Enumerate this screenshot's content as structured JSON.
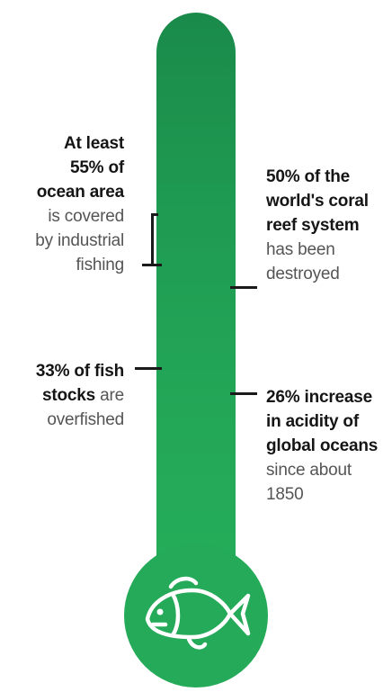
{
  "annotations": [
    {
      "id": "ocean-area",
      "lines": [
        {
          "bold": "At least",
          "light": ""
        },
        {
          "bold": "55% of",
          "light": ""
        },
        {
          "bold": "ocean area",
          "light": ""
        },
        {
          "bold": "",
          "light": "is covered"
        },
        {
          "bold": "",
          "light": "by industrial"
        },
        {
          "bold": "",
          "light": "fishing"
        }
      ]
    },
    {
      "id": "coral-reef",
      "lines": [
        {
          "bold": "50% of the",
          "light": ""
        },
        {
          "bold": "world's coral",
          "light": ""
        },
        {
          "bold": "reef system",
          "light": ""
        },
        {
          "bold": "",
          "light": "has been"
        },
        {
          "bold": "",
          "light": "destroyed"
        }
      ]
    },
    {
      "id": "fish-stocks",
      "lines": [
        {
          "bold": "33% of fish",
          "light": ""
        },
        {
          "bold": "stocks",
          "light": " are"
        },
        {
          "bold": "",
          "light": "overfished"
        }
      ]
    },
    {
      "id": "ocean-acidity",
      "lines": [
        {
          "bold": "26% increase",
          "light": ""
        },
        {
          "bold": "in acidity of",
          "light": ""
        },
        {
          "bold": "global oceans",
          "light": ""
        },
        {
          "bold": "",
          "light": "since about"
        },
        {
          "bold": "",
          "light": "1850"
        }
      ]
    }
  ],
  "icon": "fish-icon",
  "colors": {
    "tube_top": "#1a8a4a",
    "tube_bottom": "#25ad5a",
    "bulb": "#24aa58",
    "text_bold": "#151515",
    "text_light": "#555555"
  }
}
